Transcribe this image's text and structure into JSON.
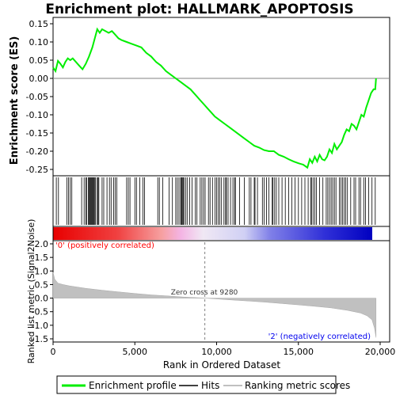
{
  "chart_data": [
    {
      "type": "line",
      "title": "Enrichment plot: HALLMARK_APOPTOSIS",
      "ylabel": "Enrichment score (ES)",
      "xlabel": "",
      "xlim": [
        0,
        20000
      ],
      "ylim": [
        -0.265,
        0.155
      ],
      "yticks": [
        0.15,
        0.1,
        0.05,
        0.0,
        -0.05,
        -0.1,
        -0.15,
        -0.2,
        -0.25
      ],
      "ytick_labels": [
        "0.15",
        "0.10",
        "0.05",
        "0.00",
        "-0.05",
        "-0.10",
        "-0.15",
        "-0.20",
        "-0.25"
      ],
      "grid": false,
      "series": [
        {
          "name": "Enrichment profile",
          "color": "#00ee00",
          "x": [
            0,
            150,
            300,
            450,
            600,
            750,
            900,
            1050,
            1200,
            1400,
            1600,
            1800,
            2000,
            2200,
            2400,
            2550,
            2700,
            2850,
            3000,
            3200,
            3400,
            3600,
            3800,
            4000,
            4200,
            4500,
            4800,
            5100,
            5400,
            5700,
            6000,
            6300,
            6600,
            6900,
            7200,
            7500,
            7800,
            8100,
            8400,
            8700,
            9000,
            9300,
            9600,
            9900,
            10200,
            10500,
            10800,
            11100,
            11400,
            11700,
            12000,
            12300,
            12600,
            12900,
            13200,
            13500,
            13800,
            14100,
            14400,
            14700,
            15000,
            15300,
            15550,
            15700,
            15850,
            16000,
            16150,
            16300,
            16450,
            16600,
            16750,
            16900,
            17050,
            17200,
            17350,
            17500,
            17650,
            17800,
            17950,
            18100,
            18250,
            18400,
            18550,
            18700,
            18850,
            19000,
            19150,
            19300,
            19450,
            19600,
            19700,
            19750
          ],
          "y": [
            0.03,
            0.02,
            0.048,
            0.04,
            0.03,
            0.045,
            0.055,
            0.05,
            0.055,
            0.045,
            0.035,
            0.025,
            0.04,
            0.06,
            0.085,
            0.11,
            0.135,
            0.125,
            0.135,
            0.13,
            0.125,
            0.13,
            0.12,
            0.11,
            0.105,
            0.1,
            0.095,
            0.09,
            0.085,
            0.07,
            0.06,
            0.045,
            0.035,
            0.02,
            0.01,
            0.0,
            -0.01,
            -0.02,
            -0.03,
            -0.045,
            -0.06,
            -0.075,
            -0.09,
            -0.105,
            -0.115,
            -0.125,
            -0.135,
            -0.145,
            -0.155,
            -0.165,
            -0.175,
            -0.185,
            -0.19,
            -0.197,
            -0.2,
            -0.2,
            -0.21,
            -0.215,
            -0.222,
            -0.228,
            -0.233,
            -0.237,
            -0.245,
            -0.222,
            -0.232,
            -0.215,
            -0.228,
            -0.21,
            -0.222,
            -0.225,
            -0.215,
            -0.195,
            -0.205,
            -0.18,
            -0.195,
            -0.185,
            -0.175,
            -0.155,
            -0.14,
            -0.145,
            -0.125,
            -0.13,
            -0.14,
            -0.12,
            -0.1,
            -0.105,
            -0.08,
            -0.06,
            -0.04,
            -0.03,
            -0.03,
            0.0
          ]
        }
      ]
    },
    {
      "type": "scatter",
      "name_hint": "hits",
      "hits": [
        200,
        330,
        850,
        950,
        1050,
        1150,
        1750,
        1900,
        2000,
        2050,
        2150,
        2200,
        2250,
        2300,
        2350,
        2400,
        2450,
        2500,
        2550,
        2600,
        2700,
        2750,
        2800,
        3000,
        3100,
        3300,
        3450,
        3550,
        3700,
        3800,
        3900,
        4500,
        4600,
        4700,
        5000,
        5100,
        5300,
        5500,
        5600,
        6400,
        6500,
        6700,
        7100,
        7300,
        7500,
        7600,
        7700,
        7800,
        7850,
        7900,
        7950,
        8000,
        8100,
        8200,
        8350,
        8500,
        8700,
        8800,
        9000,
        9100,
        9200,
        9300,
        9500,
        9600,
        9750,
        9900,
        10000,
        10100,
        10200,
        10300,
        10450,
        10550,
        10600,
        10700,
        10850,
        11000,
        11100,
        11150,
        11400,
        11700,
        12000,
        12100,
        12300,
        12350,
        12500,
        12800,
        12900,
        13050,
        13200,
        13400,
        13450,
        13550,
        13650,
        13800,
        14000,
        14200,
        14400,
        14600,
        14800,
        15000,
        15200,
        15400,
        15600,
        15750,
        15800,
        15900,
        16000,
        16100,
        16300,
        16500,
        16700,
        16800,
        16900,
        17000,
        17100,
        17200,
        17300,
        17500,
        17600,
        17700,
        17800,
        17900,
        18000,
        18200,
        18400,
        18500,
        18700,
        18800,
        19000,
        19100,
        19300,
        19500,
        19700
      ]
    },
    {
      "type": "area",
      "ylabel": "Ranked list metric (Signal2Noise)",
      "xlabel": "Rank in Ordered Dataset",
      "xlim": [
        0,
        20000
      ],
      "ylim": [
        -1.6,
        2.05
      ],
      "yticks": [
        2.0,
        1.5,
        1.0,
        0.5,
        0.0,
        -0.5,
        -1.0,
        -1.5
      ],
      "ytick_labels": [
        "2.0",
        "1.5",
        "1.0",
        "0.5",
        "0.0",
        "-0.5",
        "-1.0",
        "-1.5"
      ],
      "xticks": [
        0,
        5000,
        10000,
        15000,
        20000
      ],
      "xtick_labels": [
        "0",
        "5,000",
        "10,000",
        "15,000",
        "20,000"
      ],
      "series": [
        {
          "name": "Ranked metric",
          "color": "#c0c0c0",
          "x": [
            0,
            100,
            300,
            600,
            1000,
            2000,
            3000,
            4000,
            5000,
            6000,
            7000,
            8000,
            9000,
            9280,
            10000,
            11000,
            12000,
            13000,
            14000,
            15000,
            16000,
            17000,
            18000,
            18800,
            19200,
            19500,
            19650,
            19750
          ],
          "y": [
            0.95,
            0.7,
            0.55,
            0.5,
            0.45,
            0.36,
            0.29,
            0.23,
            0.17,
            0.12,
            0.08,
            0.04,
            0.01,
            0.0,
            -0.03,
            -0.07,
            -0.11,
            -0.15,
            -0.2,
            -0.25,
            -0.3,
            -0.36,
            -0.45,
            -0.55,
            -0.65,
            -0.8,
            -1.1,
            -1.45
          ]
        }
      ],
      "zero_cross": 9280,
      "annotations": [
        "'0' (positively correlated)",
        "Zero cross at 9280",
        "'2' (negatively correlated)"
      ]
    }
  ],
  "legend": {
    "placement": "bottom",
    "entries": [
      {
        "label": "Enrichment profile",
        "color": "#00ee00"
      },
      {
        "label": "Hits",
        "color": "#000000"
      },
      {
        "label": "Ranking metric scores",
        "color": "#c0c0c0"
      }
    ]
  },
  "colors": {
    "positive": "#ff0000",
    "negative": "#0000ff",
    "zero_line": "#808080",
    "axis": "#000000"
  }
}
